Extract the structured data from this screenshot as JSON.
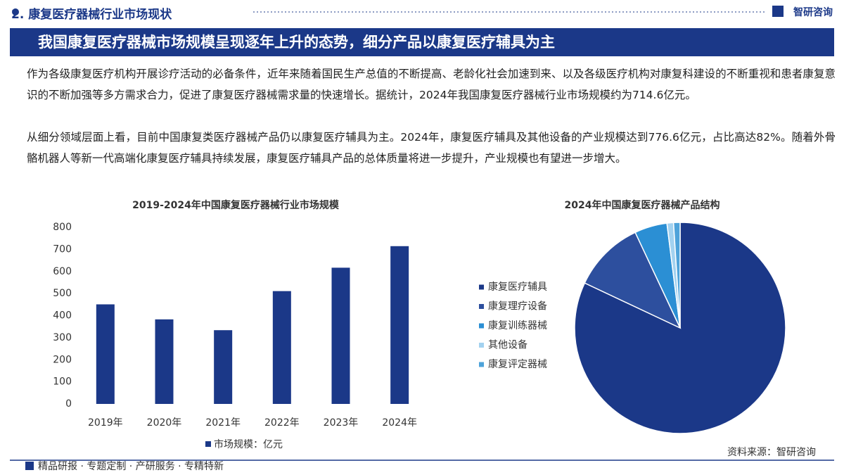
{
  "header": {
    "section": "2. 康复医疗器械行业市场现状",
    "brand": "智研咨询"
  },
  "banner": {
    "title": "我国康复医疗器械市场规模呈现逐年上升的态势，细分产品以康复医疗辅具为主"
  },
  "paragraphs": [
    "作为各级康复医疗机构开展诊疗活动的必备条件，近年来随着国民生产总值的不断提高、老龄化社会加速到来、以及各级医疗机构对康复科建设的不断重视和患者康复意识的不断加强等多方需求合力，促进了康复医疗器械需求量的快速增长。据统计，2024年我国康复医疗器械行业市场规模约为714.6亿元。",
    "从细分领域层面上看，目前中国康复类医疗器械产品仍以康复医疗辅具为主。2024年，康复医疗辅具及其他设备的产业规模达到776.6亿元，占比高达82%。随着外骨骼机器人等新一代高端化康复医疗辅具持续发展，康复医疗辅具产品的总体质量将进一步提升，产业规模也有望进一步增大。"
  ],
  "chart_data": [
    {
      "type": "bar",
      "title": "2019-2024年中国康复医疗器械行业市场规模",
      "categories": [
        "2019年",
        "2020年",
        "2021年",
        "2022年",
        "2023年",
        "2024年"
      ],
      "series": [
        {
          "name": "市场规模：亿元",
          "color": "#1b3888",
          "values": [
            451,
            383,
            334,
            511,
            617,
            714.6
          ]
        }
      ],
      "ylim": [
        0,
        800
      ],
      "yticks": [
        0,
        100,
        200,
        300,
        400,
        500,
        600,
        700,
        800
      ],
      "grid": false
    },
    {
      "type": "pie",
      "title": "2024年中国康复医疗器械产品结构",
      "categories": [
        "康复医疗辅具",
        "康复理疗设备",
        "康复训练器械",
        "其他设备",
        "康复评定器械"
      ],
      "values": [
        82,
        11,
        5,
        1,
        1
      ],
      "colors": [
        "#1b3888",
        "#2d4f9e",
        "#2b8fd4",
        "#a3d2f0",
        "#4ea3da"
      ]
    }
  ],
  "source": "资料来源：智研咨询",
  "footer": "精品研报 · 专题定制 · 产研服务 · 专精特新"
}
